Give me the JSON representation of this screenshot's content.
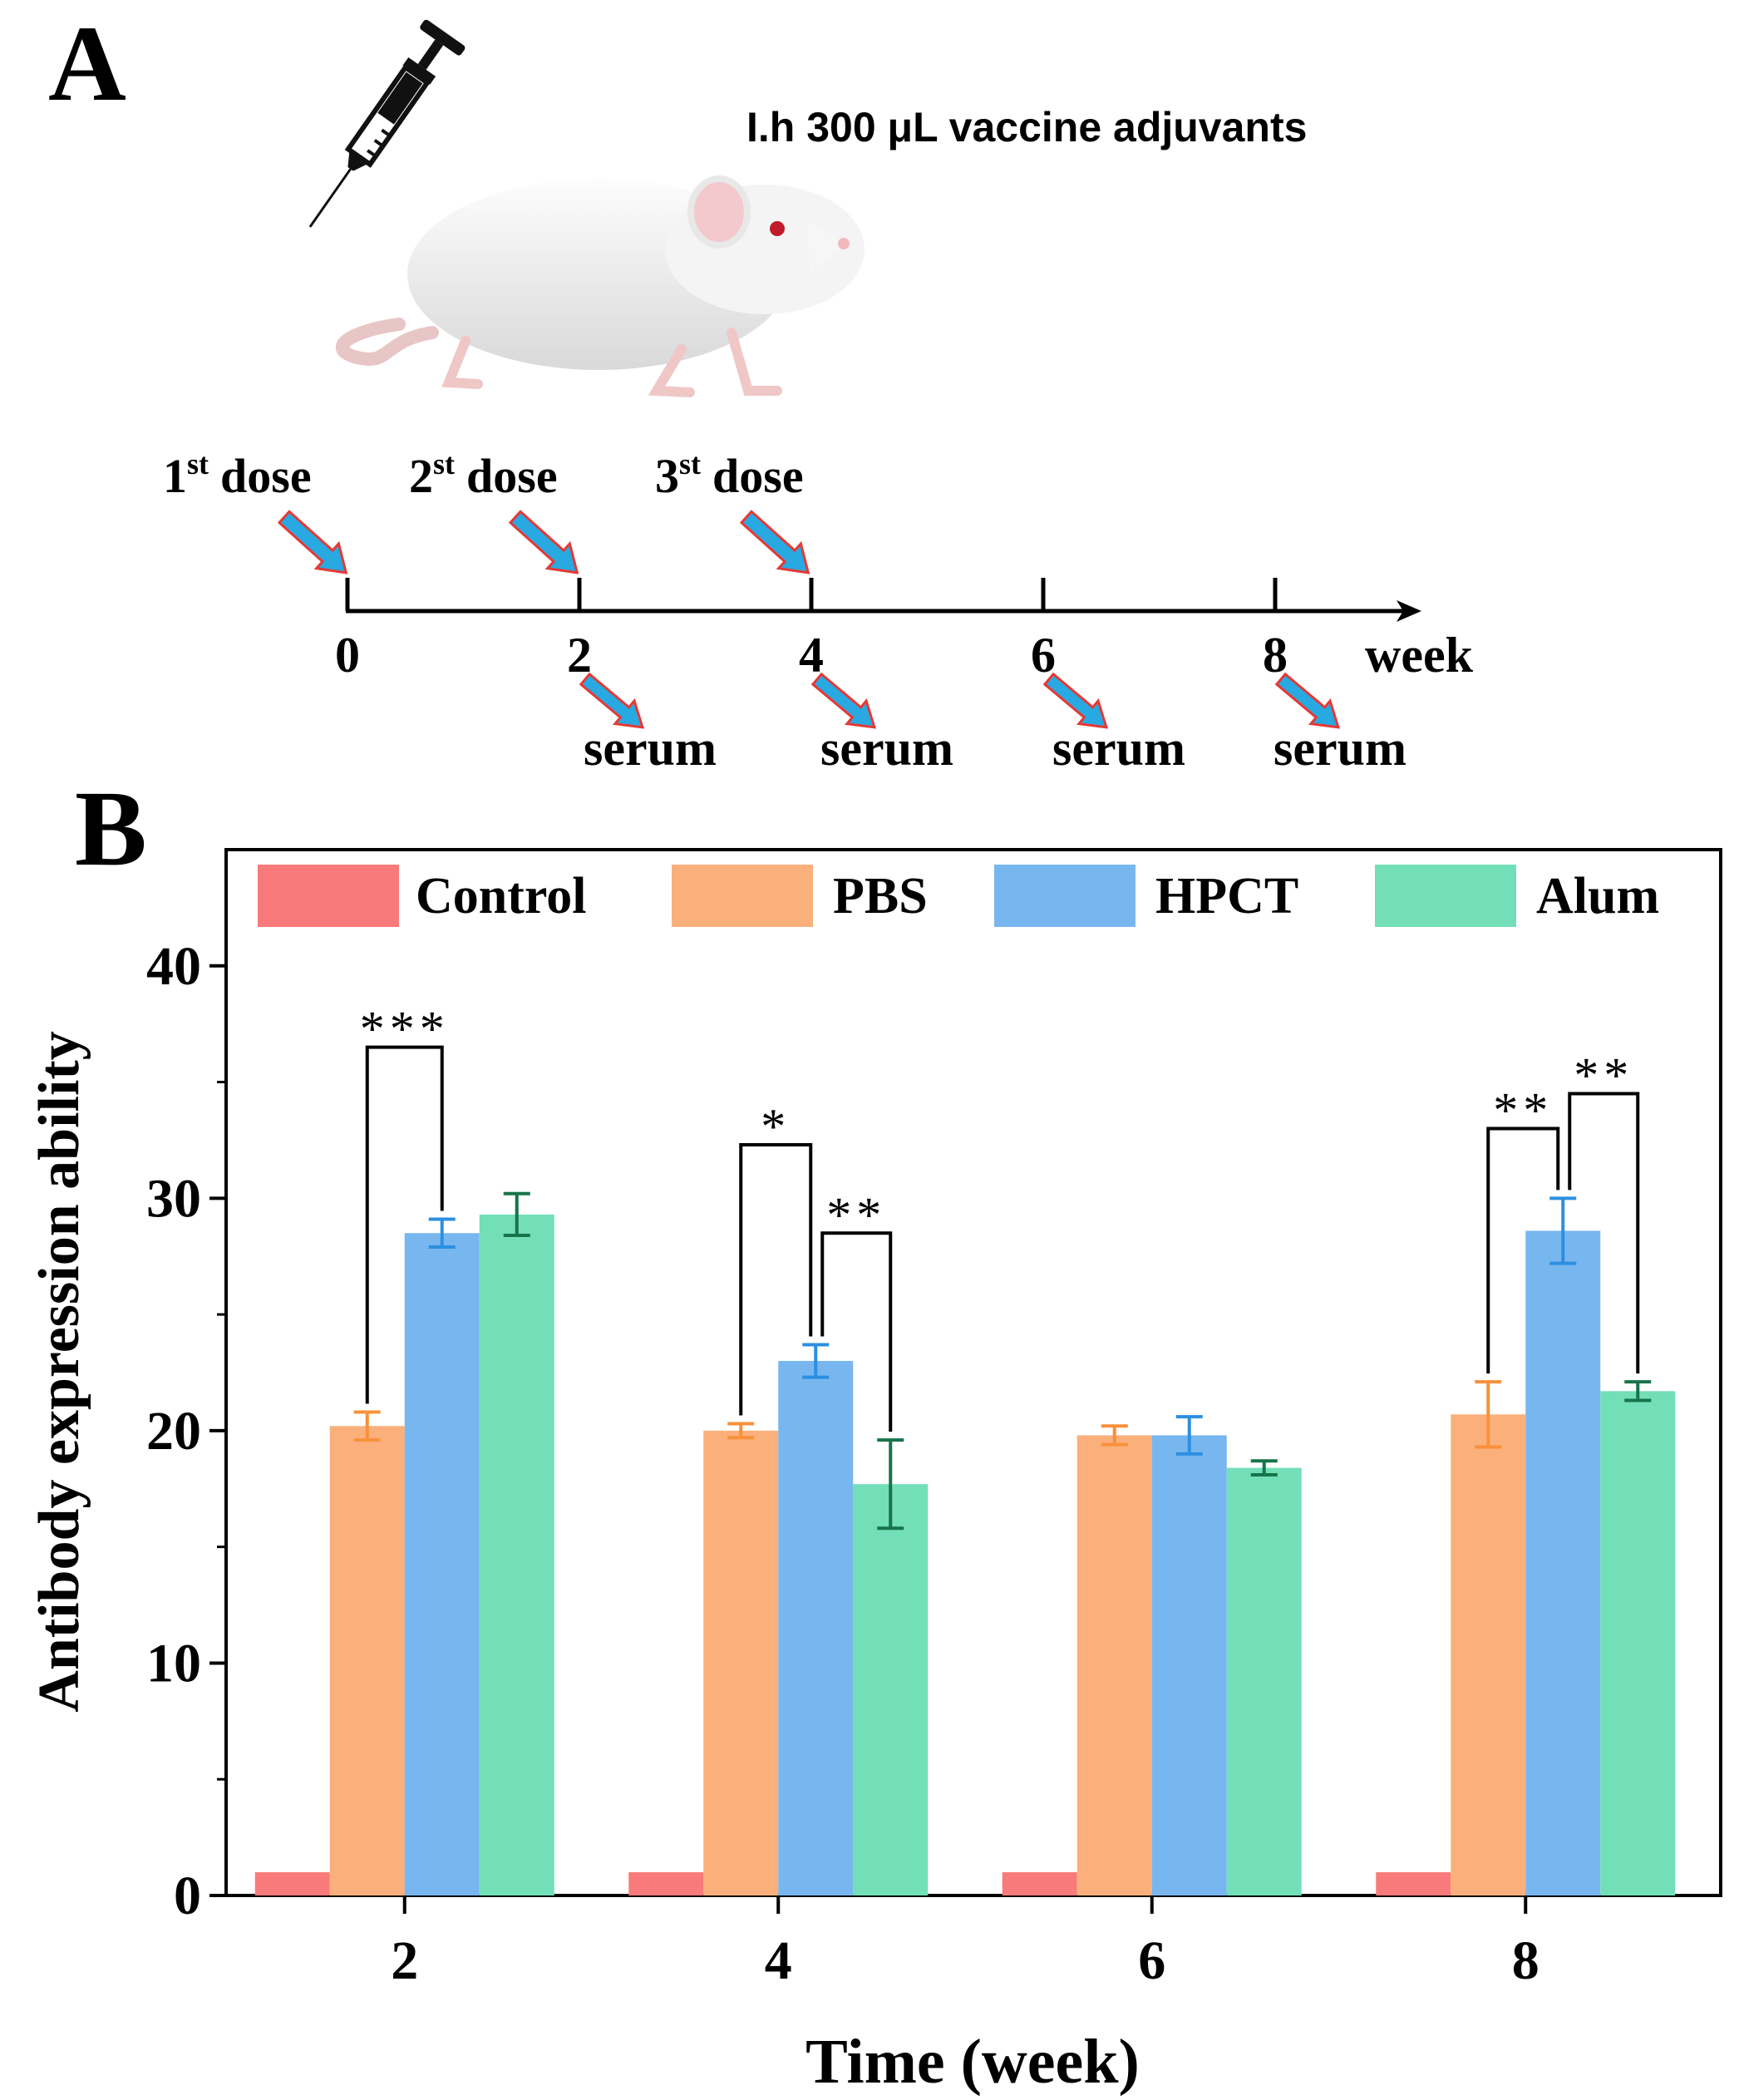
{
  "panel_a": {
    "label": "A",
    "injection_text": "I.h  300 μL vaccine adjuvants",
    "doses": [
      {
        "num": "1",
        "sup": "st",
        "word": "dose"
      },
      {
        "num": "2",
        "sup": "st",
        "word": "dose"
      },
      {
        "num": "3",
        "sup": "st",
        "word": "dose"
      }
    ],
    "timeline_ticks": [
      "0",
      "2",
      "4",
      "6",
      "8"
    ],
    "timeline_unit": "week",
    "serum_label": "serum",
    "colors": {
      "arrow_fill": "#29a9e1",
      "arrow_outline": "#e53935"
    }
  },
  "panel_b": {
    "label": "B"
  },
  "chart_data": {
    "type": "bar",
    "title": "",
    "xlabel": "Time (week)",
    "ylabel": "Antibody expression ability",
    "categories": [
      "2",
      "4",
      "6",
      "8"
    ],
    "ylim": [
      0,
      45
    ],
    "yticks": [
      0,
      10,
      20,
      30,
      40
    ],
    "legend_position": "top",
    "series": [
      {
        "name": "Control",
        "color": "#f97a7a",
        "err_color": "#f97a7a",
        "values": [
          1.0,
          1.0,
          1.0,
          1.0
        ],
        "errors": [
          0,
          0,
          0,
          0
        ]
      },
      {
        "name": "PBS",
        "color": "#fbb07c",
        "err_color": "#f7913a",
        "values": [
          20.2,
          20.0,
          19.8,
          20.7
        ],
        "errors": [
          0.6,
          0.3,
          0.4,
          1.4
        ]
      },
      {
        "name": "HPCT",
        "color": "#78b6ef",
        "err_color": "#2c8fe0",
        "values": [
          28.5,
          23.0,
          19.8,
          28.6
        ],
        "errors": [
          0.6,
          0.7,
          0.8,
          1.4
        ]
      },
      {
        "name": "Alum",
        "color": "#72dfb8",
        "err_color": "#17744a",
        "values": [
          29.3,
          17.7,
          18.4,
          21.7
        ],
        "errors": [
          0.9,
          1.9,
          0.3,
          0.4
        ]
      }
    ],
    "significance": [
      {
        "category": 0,
        "from_series": 1,
        "to_series": 2,
        "label": "***",
        "level": 36.5
      },
      {
        "category": 1,
        "from_series": 1,
        "to_series": 2,
        "label": "*",
        "level": 32.3
      },
      {
        "category": 1,
        "from_series": 2,
        "to_series": 3,
        "label": "**",
        "level": 28.5
      },
      {
        "category": 3,
        "from_series": 1,
        "to_series": 2,
        "label": "**",
        "level": 33.0
      },
      {
        "category": 3,
        "from_series": 2,
        "to_series": 3,
        "label": "**",
        "level": 34.5
      }
    ]
  }
}
